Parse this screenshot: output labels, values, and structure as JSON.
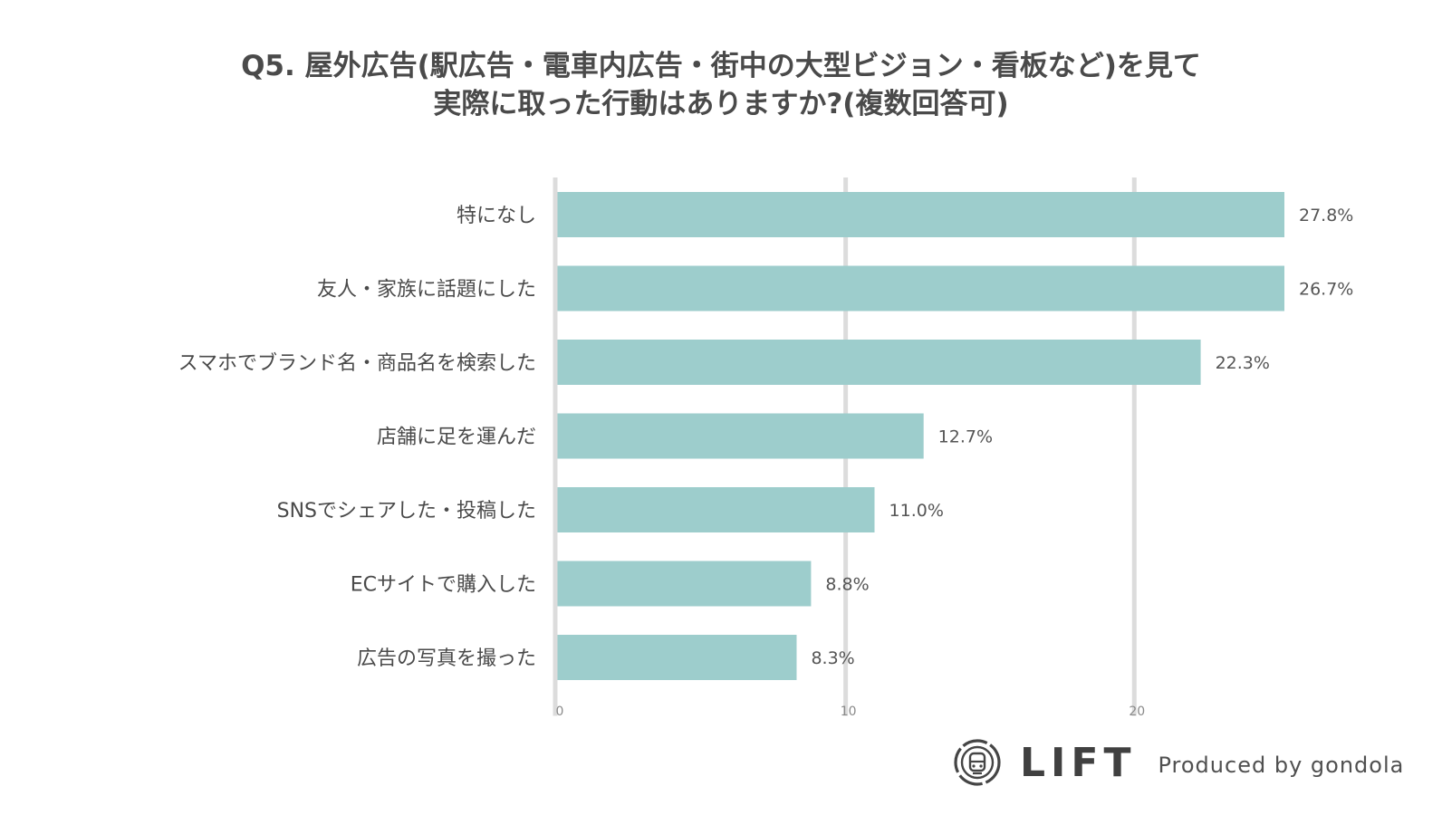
{
  "title": {
    "line1": "Q5. 屋外広告(駅広告・電車内広告・街中の大型ビジョン・看板など)を見て",
    "line2": "実際に取った行動はありますか?(複数回答可)"
  },
  "chart_data": {
    "type": "bar",
    "orientation": "horizontal",
    "title": "Q5. 屋外広告(駅広告・電車内広告・街中の大型ビジョン・看板など)を見て 実際に取った行動はありますか?(複数回答可)",
    "categories": [
      "特になし",
      "友人・家族に話題にした",
      "スマホでブランド名・商品名を検索した",
      "店舗に足を運んだ",
      "SNSでシェアした・投稿した",
      "ECサイトで購入した",
      "広告の写真を撮った"
    ],
    "values": [
      27.8,
      26.7,
      22.3,
      12.7,
      11.0,
      8.8,
      8.3
    ],
    "value_labels": [
      "27.8%",
      "26.7%",
      "22.3%",
      "12.7%",
      "11.0%",
      "8.8%",
      "8.3%"
    ],
    "xlim": [
      0,
      25.2
    ],
    "x_ticks": [
      0,
      10,
      20
    ],
    "x_tick_labels": [
      "0",
      "10",
      "20"
    ],
    "xlabel": "",
    "ylabel": "",
    "grid": true,
    "legend": "none",
    "bar_color": "#9dcdcc",
    "grid_color": "#dcdcdc"
  },
  "logo": {
    "wordmark": "LIFT",
    "byline": "Produced by gondola",
    "icon": "lift-emblem-icon"
  }
}
